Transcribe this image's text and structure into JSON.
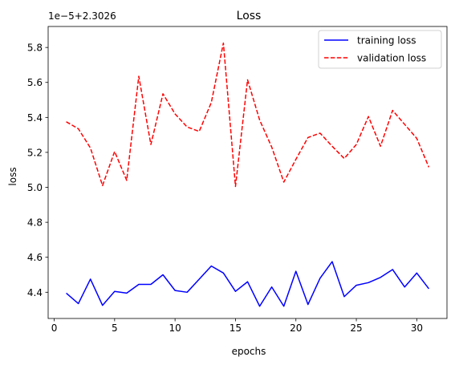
{
  "chart_data": {
    "type": "line",
    "title": "Loss",
    "xlabel": "epochs",
    "ylabel": "loss",
    "offset_label": "1e−5+2.3026",
    "xlim": [
      -0.5,
      32.5
    ],
    "ylim": [
      4.25,
      5.92
    ],
    "xticks": [
      0,
      5,
      10,
      15,
      20,
      25,
      30
    ],
    "yticks": [
      4.4,
      4.6,
      4.8,
      5.0,
      5.2,
      5.4,
      5.6,
      5.8
    ],
    "ytick_labels": [
      "4.4",
      "4.6",
      "4.8",
      "5.0",
      "5.2",
      "5.4",
      "5.6",
      "5.8"
    ],
    "legend_position": "top-right",
    "grid": false,
    "x": [
      1,
      2,
      3,
      4,
      5,
      6,
      7,
      8,
      9,
      10,
      11,
      12,
      13,
      14,
      15,
      16,
      17,
      18,
      19,
      20,
      21,
      22,
      23,
      24,
      25,
      26,
      27,
      28,
      29,
      30,
      31
    ],
    "series": [
      {
        "name": "training loss",
        "color": "#0000ff",
        "style": "solid",
        "values": [
          4.395,
          4.335,
          4.475,
          4.325,
          4.405,
          4.395,
          4.445,
          4.445,
          4.5,
          4.41,
          4.4,
          4.475,
          4.55,
          4.51,
          4.405,
          4.46,
          4.32,
          4.43,
          4.32,
          4.52,
          4.33,
          4.48,
          4.575,
          4.375,
          4.44,
          4.455,
          4.485,
          4.53,
          4.43,
          4.51,
          4.42
        ]
      },
      {
        "name": "validation loss",
        "color": "#ff0000",
        "style": "dashed",
        "values": [
          5.375,
          5.335,
          5.225,
          5.01,
          5.205,
          5.04,
          5.635,
          5.245,
          5.535,
          5.42,
          5.345,
          5.32,
          5.485,
          5.825,
          5.005,
          5.615,
          5.385,
          5.23,
          5.03,
          5.16,
          5.285,
          5.31,
          5.235,
          5.165,
          5.245,
          5.405,
          5.235,
          5.44,
          5.36,
          5.28,
          5.115
        ]
      }
    ]
  }
}
